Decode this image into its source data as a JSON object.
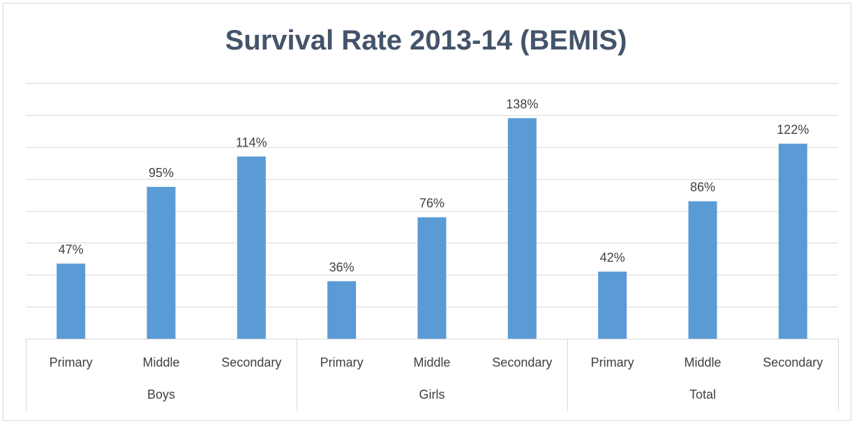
{
  "chart_data": {
    "type": "bar",
    "title": "Survival Rate 2013-14 (BEMIS)",
    "groups": [
      {
        "name": "Boys",
        "categories": [
          "Primary",
          "Middle",
          "Secondary"
        ],
        "values": [
          47,
          95,
          114
        ],
        "labels": [
          "47%",
          "95%",
          "114%"
        ]
      },
      {
        "name": "Girls",
        "categories": [
          "Primary",
          "Middle",
          "Secondary"
        ],
        "values": [
          36,
          76,
          138
        ],
        "labels": [
          "36%",
          "76%",
          "138%"
        ]
      },
      {
        "name": "Total",
        "categories": [
          "Primary",
          "Middle",
          "Secondary"
        ],
        "values": [
          42,
          86,
          122
        ],
        "labels": [
          "42%",
          "86%",
          "122%"
        ]
      }
    ],
    "unit": "%",
    "ylim": [
      0,
      160
    ],
    "ytick_step": 20,
    "gridlines": true,
    "bar_color": "#5b9bd5",
    "grid_color": "#d9d9d9",
    "title_color": "#44546a"
  }
}
